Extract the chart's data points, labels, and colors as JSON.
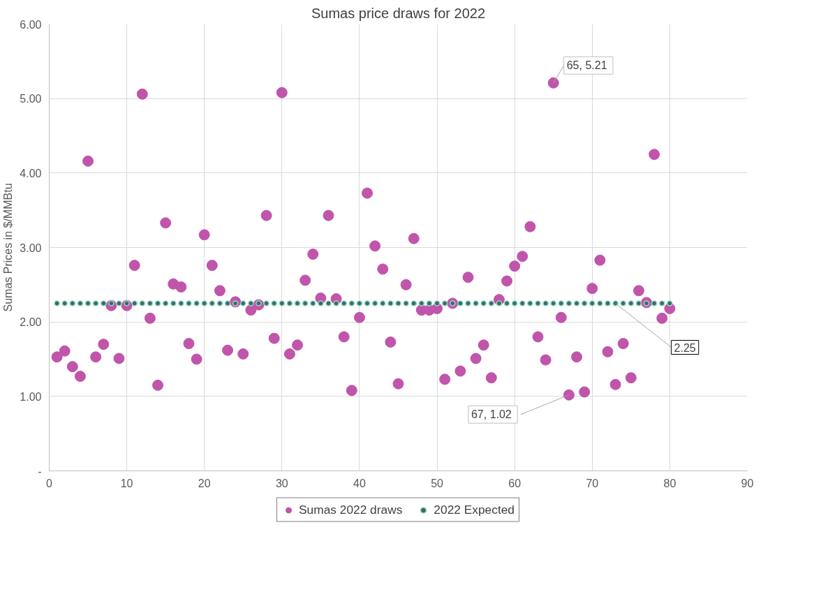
{
  "chart_data": {
    "type": "scatter",
    "title": "Sumas price draws for 2022",
    "ylabel": "Sumas Prices in $/MMBtu",
    "xlim": [
      0,
      90
    ],
    "xticks": [
      0,
      10,
      20,
      30,
      40,
      50,
      60,
      70,
      80,
      90
    ],
    "ylim": [
      0,
      6
    ],
    "yticks": [
      {
        "value": 0,
        "label": "-"
      },
      {
        "value": 1,
        "label": "1.00"
      },
      {
        "value": 2,
        "label": "2.00"
      },
      {
        "value": 3,
        "label": "3.00"
      },
      {
        "value": 4,
        "label": "4.00"
      },
      {
        "value": 5,
        "label": "5.00"
      },
      {
        "value": 6,
        "label": "6.00"
      }
    ],
    "grid": true,
    "legend": "bottom",
    "marker": "circle",
    "x": [
      1,
      2,
      3,
      4,
      5,
      6,
      7,
      8,
      9,
      10,
      11,
      12,
      13,
      14,
      15,
      16,
      17,
      18,
      19,
      20,
      21,
      22,
      23,
      24,
      25,
      26,
      27,
      28,
      29,
      30,
      31,
      32,
      33,
      34,
      35,
      36,
      37,
      38,
      39,
      40,
      41,
      42,
      43,
      44,
      45,
      46,
      47,
      48,
      49,
      50,
      51,
      52,
      53,
      54,
      55,
      56,
      57,
      58,
      59,
      60,
      61,
      62,
      63,
      64,
      65,
      66,
      67,
      68,
      69,
      70,
      71,
      72,
      73,
      74,
      75,
      76,
      77,
      78,
      79,
      80
    ],
    "series": [
      {
        "name": "Sumas 2022 draws",
        "color": "#c055ab",
        "values": [
          1.53,
          1.61,
          1.4,
          1.27,
          4.16,
          1.53,
          1.7,
          2.22,
          1.51,
          2.22,
          2.76,
          5.06,
          2.05,
          1.15,
          3.33,
          2.51,
          2.47,
          1.71,
          1.5,
          3.17,
          2.76,
          2.42,
          1.62,
          2.27,
          1.57,
          2.16,
          2.23,
          3.43,
          1.78,
          5.08,
          1.57,
          1.69,
          2.56,
          2.91,
          2.32,
          3.43,
          2.31,
          1.8,
          1.08,
          2.06,
          3.73,
          3.02,
          2.71,
          1.73,
          1.17,
          2.5,
          3.12,
          2.16,
          2.16,
          2.18,
          1.23,
          2.25,
          1.34,
          2.6,
          1.51,
          1.69,
          1.25,
          2.3,
          2.55,
          2.75,
          2.88,
          3.28,
          1.8,
          1.49,
          5.21,
          2.06,
          1.02,
          1.53,
          1.06,
          2.45,
          2.83,
          1.6,
          1.16,
          1.71,
          1.25,
          2.42,
          2.26,
          4.25,
          2.05,
          2.18
        ]
      },
      {
        "name": "2022 Expected",
        "color": "#3d6b60",
        "values": [
          2.25,
          2.25,
          2.25,
          2.25,
          2.25,
          2.25,
          2.25,
          2.25,
          2.25,
          2.25,
          2.25,
          2.25,
          2.25,
          2.25,
          2.25,
          2.25,
          2.25,
          2.25,
          2.25,
          2.25,
          2.25,
          2.25,
          2.25,
          2.25,
          2.25,
          2.25,
          2.25,
          2.25,
          2.25,
          2.25,
          2.25,
          2.25,
          2.25,
          2.25,
          2.25,
          2.25,
          2.25,
          2.25,
          2.25,
          2.25,
          2.25,
          2.25,
          2.25,
          2.25,
          2.25,
          2.25,
          2.25,
          2.25,
          2.25,
          2.25,
          2.25,
          2.25,
          2.25,
          2.25,
          2.25,
          2.25,
          2.25,
          2.25,
          2.25,
          2.25,
          2.25,
          2.25,
          2.25,
          2.25,
          2.25,
          2.25,
          2.25,
          2.25,
          2.25,
          2.25,
          2.25,
          2.25,
          2.25,
          2.25,
          2.25,
          2.25,
          2.25,
          2.25,
          2.25,
          2.25
        ]
      }
    ],
    "annotations": [
      {
        "text": "65,  5.21",
        "x": 65,
        "y": 5.21
      },
      {
        "text": "67,  1.02",
        "x": 67,
        "y": 1.02
      },
      {
        "text": "2.25",
        "x": 73,
        "y": 2.25
      }
    ]
  }
}
